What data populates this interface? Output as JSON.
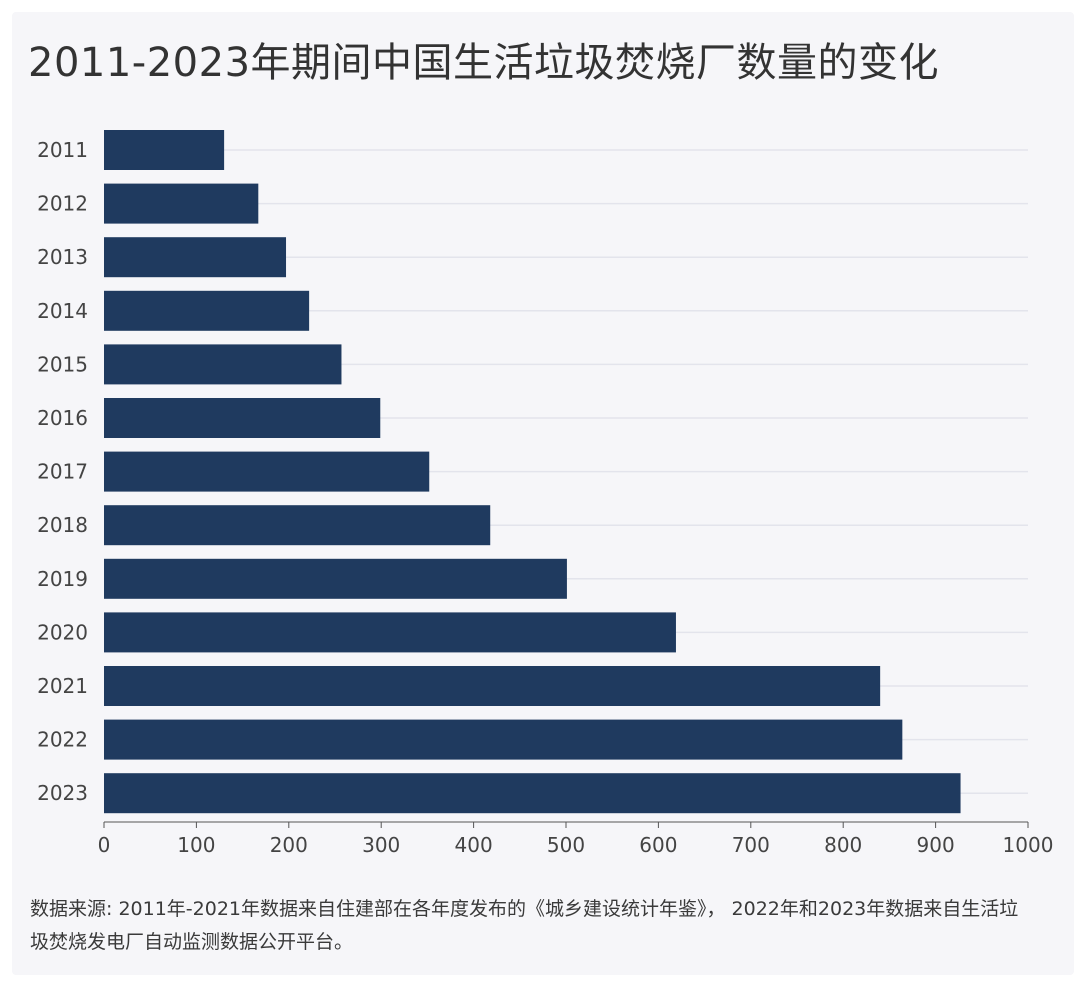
{
  "page": {
    "title": "2011-2023年期间中国生活垃圾焚烧厂数量的变化",
    "source": "数据来源: 2011年-2021年数据来自住建部在各年度发布的《城乡建设统计年鉴》， 2022年和2023年数据来自生活垃圾焚烧发电厂自动监测数据公开平台。"
  },
  "colors": {
    "bar": "#1f3a5f",
    "grid": "#e3e4ec",
    "axis": "#555555",
    "card_bg": "#f6f6f9"
  },
  "chart_data": {
    "type": "bar",
    "orientation": "horizontal",
    "title": "2011-2023年期间中国生活垃圾焚烧厂数量的变化",
    "xlabel": "",
    "ylabel": "",
    "categories": [
      "2011",
      "2012",
      "2013",
      "2014",
      "2015",
      "2016",
      "2017",
      "2018",
      "2019",
      "2020",
      "2021",
      "2022",
      "2023"
    ],
    "values": [
      130,
      167,
      197,
      222,
      257,
      299,
      352,
      418,
      501,
      619,
      840,
      864,
      927
    ],
    "xlim": [
      0,
      1000
    ],
    "xticks": [
      0,
      100,
      200,
      300,
      400,
      500,
      600,
      700,
      800,
      900,
      1000
    ],
    "grid": true,
    "legend": "none"
  }
}
